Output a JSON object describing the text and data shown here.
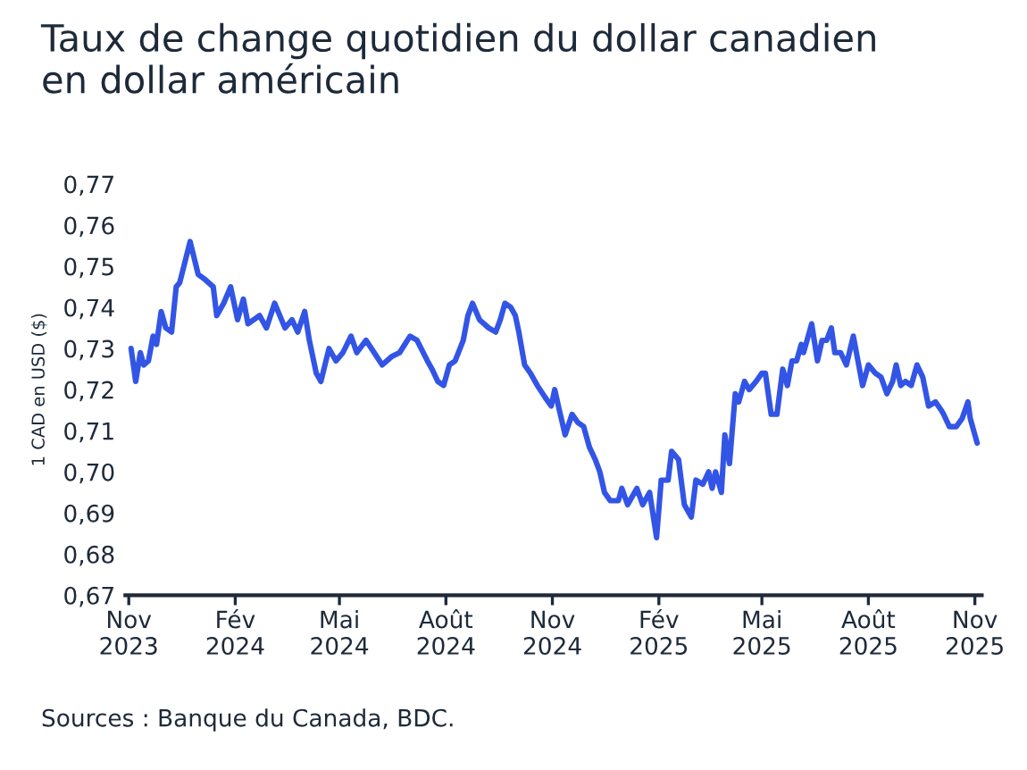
{
  "chart_data": {
    "type": "line",
    "title": "Taux de change quotidien du dollar canadien\nen dollar américain",
    "ylabel": "1 CAD en USD ($)",
    "annotations": [
      "Sources : Banque du Canada, BDC."
    ],
    "x": [
      "2023-11-03",
      "2023-11-07",
      "2023-11-11",
      "2023-11-14",
      "2023-11-18",
      "2023-11-22",
      "2023-11-25",
      "2023-11-29",
      "2023-12-03",
      "2023-12-08",
      "2023-12-12",
      "2023-12-15",
      "2023-12-24",
      "2023-12-31",
      "2024-01-05",
      "2024-01-13",
      "2024-01-16",
      "2024-01-22",
      "2024-01-28",
      "2024-02-03",
      "2024-02-08",
      "2024-02-12",
      "2024-02-22",
      "2024-02-28",
      "2024-03-06",
      "2024-03-15",
      "2024-03-21",
      "2024-03-26",
      "2024-04-01",
      "2024-04-05",
      "2024-04-11",
      "2024-04-15",
      "2024-04-22",
      "2024-04-28",
      "2024-05-04",
      "2024-05-11",
      "2024-05-16",
      "2024-05-24",
      "2024-05-31",
      "2024-06-07",
      "2024-06-15",
      "2024-06-22",
      "2024-07-01",
      "2024-07-07",
      "2024-07-16",
      "2024-07-20",
      "2024-07-25",
      "2024-07-30",
      "2024-08-04",
      "2024-08-09",
      "2024-08-16",
      "2024-08-20",
      "2024-08-24",
      "2024-08-30",
      "2024-09-07",
      "2024-09-13",
      "2024-09-17",
      "2024-09-21",
      "2024-09-26",
      "2024-09-30",
      "2024-10-03",
      "2024-10-08",
      "2024-10-13",
      "2024-10-19",
      "2024-10-26",
      "2024-10-31",
      "2024-11-03",
      "2024-11-07",
      "2024-11-12",
      "2024-11-18",
      "2024-11-23",
      "2024-11-28",
      "2024-12-03",
      "2024-12-08",
      "2024-12-12",
      "2024-12-16",
      "2024-12-21",
      "2024-12-28",
      "2024-12-31",
      "2025-01-05",
      "2025-01-13",
      "2025-01-18",
      "2025-01-24",
      "2025-01-30",
      "2025-02-03",
      "2025-02-09",
      "2025-02-12",
      "2025-02-18",
      "2025-02-23",
      "2025-03-01",
      "2025-03-05",
      "2025-03-11",
      "2025-03-16",
      "2025-03-19",
      "2025-03-22",
      "2025-03-27",
      "2025-03-30",
      "2025-04-03",
      "2025-04-08",
      "2025-04-11",
      "2025-04-16",
      "2025-04-20",
      "2025-04-26",
      "2025-05-01",
      "2025-05-04",
      "2025-05-09",
      "2025-05-14",
      "2025-05-19",
      "2025-05-23",
      "2025-05-27",
      "2025-05-31",
      "2025-06-04",
      "2025-06-06",
      "2025-06-13",
      "2025-06-18",
      "2025-06-22",
      "2025-06-26",
      "2025-06-30",
      "2025-07-03",
      "2025-07-08",
      "2025-07-13",
      "2025-07-19",
      "2025-07-23",
      "2025-07-27",
      "2025-08-01",
      "2025-08-07",
      "2025-08-12",
      "2025-08-17",
      "2025-08-22",
      "2025-08-25",
      "2025-08-29",
      "2025-09-02",
      "2025-09-07",
      "2025-09-12",
      "2025-09-17",
      "2025-09-22",
      "2025-09-28",
      "2025-10-03",
      "2025-10-05",
      "2025-10-10",
      "2025-10-16",
      "2025-10-21",
      "2025-10-26",
      "2025-10-28",
      "2025-11-03"
    ],
    "series": [
      {
        "color": "#3355e6",
        "values": [
          0.73,
          0.722,
          0.729,
          0.726,
          0.727,
          0.733,
          0.731,
          0.739,
          0.735,
          0.734,
          0.745,
          0.746,
          0.756,
          0.748,
          0.747,
          0.745,
          0.738,
          0.741,
          0.745,
          0.737,
          0.742,
          0.736,
          0.738,
          0.735,
          0.741,
          0.735,
          0.737,
          0.734,
          0.739,
          0.732,
          0.724,
          0.722,
          0.73,
          0.727,
          0.729,
          0.733,
          0.729,
          0.732,
          0.729,
          0.726,
          0.728,
          0.729,
          0.733,
          0.732,
          0.727,
          0.725,
          0.722,
          0.721,
          0.726,
          0.727,
          0.732,
          0.738,
          0.741,
          0.737,
          0.735,
          0.734,
          0.737,
          0.741,
          0.74,
          0.738,
          0.734,
          0.726,
          0.724,
          0.721,
          0.718,
          0.716,
          0.72,
          0.715,
          0.709,
          0.714,
          0.712,
          0.711,
          0.706,
          0.703,
          0.7,
          0.695,
          0.693,
          0.693,
          0.696,
          0.692,
          0.696,
          0.692,
          0.695,
          0.684,
          0.698,
          0.698,
          0.705,
          0.703,
          0.692,
          0.689,
          0.698,
          0.697,
          0.7,
          0.696,
          0.7,
          0.695,
          0.709,
          0.702,
          0.719,
          0.717,
          0.722,
          0.72,
          0.722,
          0.724,
          0.724,
          0.714,
          0.714,
          0.725,
          0.721,
          0.727,
          0.727,
          0.731,
          0.729,
          0.736,
          0.727,
          0.732,
          0.732,
          0.735,
          0.729,
          0.729,
          0.726,
          0.733,
          0.727,
          0.721,
          0.726,
          0.724,
          0.723,
          0.719,
          0.722,
          0.726,
          0.721,
          0.722,
          0.721,
          0.726,
          0.723,
          0.716,
          0.717,
          0.715,
          0.714,
          0.711,
          0.711,
          0.713,
          0.717,
          0.713,
          0.707
        ]
      }
    ],
    "xlim": [
      "2023-10-29",
      "2025-11-07"
    ],
    "xticks": [
      {
        "value": "2023-11-01",
        "label": "Nov\n2023"
      },
      {
        "value": "2024-02-01",
        "label": "Fév\n2024"
      },
      {
        "value": "2024-05-01",
        "label": "Mai\n2024"
      },
      {
        "value": "2024-08-01",
        "label": "Août\n2024"
      },
      {
        "value": "2024-11-01",
        "label": "Nov\n2024"
      },
      {
        "value": "2025-02-01",
        "label": "Fév\n2025"
      },
      {
        "value": "2025-05-01",
        "label": "Mai\n2025"
      },
      {
        "value": "2025-08-01",
        "label": "Août\n2025"
      },
      {
        "value": "2025-11-01",
        "label": "Nov\n2025"
      }
    ],
    "ylim": [
      0.67,
      0.77
    ],
    "yticks": [
      {
        "value": 0.67,
        "label": "0,67"
      },
      {
        "value": 0.68,
        "label": "0,68"
      },
      {
        "value": 0.69,
        "label": "0,69"
      },
      {
        "value": 0.7,
        "label": "0,70"
      },
      {
        "value": 0.71,
        "label": "0,71"
      },
      {
        "value": 0.72,
        "label": "0,72"
      },
      {
        "value": 0.73,
        "label": "0,73"
      },
      {
        "value": 0.74,
        "label": "0,74"
      },
      {
        "value": 0.75,
        "label": "0,75"
      },
      {
        "value": 0.76,
        "label": "0,76"
      },
      {
        "value": 0.77,
        "label": "0,77"
      }
    ],
    "grid": false,
    "legend": false,
    "line_style": "solid"
  }
}
